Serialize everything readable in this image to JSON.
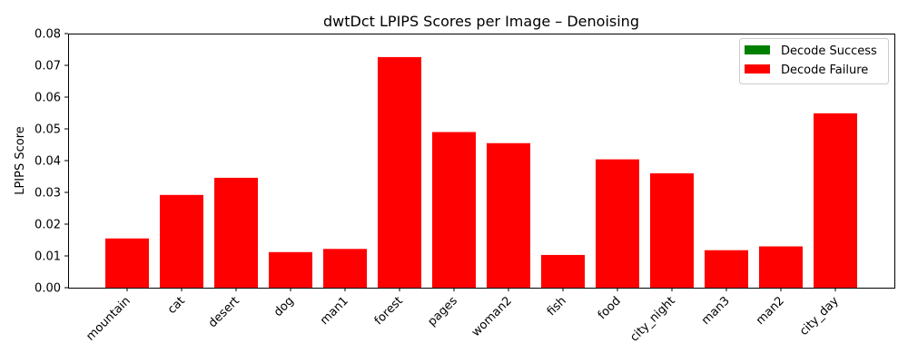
{
  "chart_data": {
    "type": "bar",
    "title": "dwtDct LPIPS Scores per Image – Denoising",
    "xlabel": "",
    "ylabel": "LPIPS Score",
    "ylim": [
      0,
      0.08
    ],
    "yticks": [
      "0.00",
      "0.01",
      "0.02",
      "0.03",
      "0.04",
      "0.05",
      "0.06",
      "0.07",
      "0.08"
    ],
    "grid": false,
    "legend_position": "top-right",
    "legend": [
      {
        "label": "Decode Success",
        "color": "#008000"
      },
      {
        "label": "Decode Failure",
        "color": "#ff0000"
      }
    ],
    "categories": [
      "mountain",
      "cat",
      "desert",
      "dog",
      "man1",
      "forest",
      "pages",
      "woman2",
      "fish",
      "food",
      "city_night",
      "man3",
      "man2",
      "city_day"
    ],
    "values": [
      0.0155,
      0.0292,
      0.0346,
      0.0112,
      0.0122,
      0.0726,
      0.049,
      0.0455,
      0.0103,
      0.0404,
      0.036,
      0.0118,
      0.013,
      0.0549
    ],
    "status": [
      "Decode Failure",
      "Decode Failure",
      "Decode Failure",
      "Decode Failure",
      "Decode Failure",
      "Decode Failure",
      "Decode Failure",
      "Decode Failure",
      "Decode Failure",
      "Decode Failure",
      "Decode Failure",
      "Decode Failure",
      "Decode Failure",
      "Decode Failure"
    ]
  }
}
